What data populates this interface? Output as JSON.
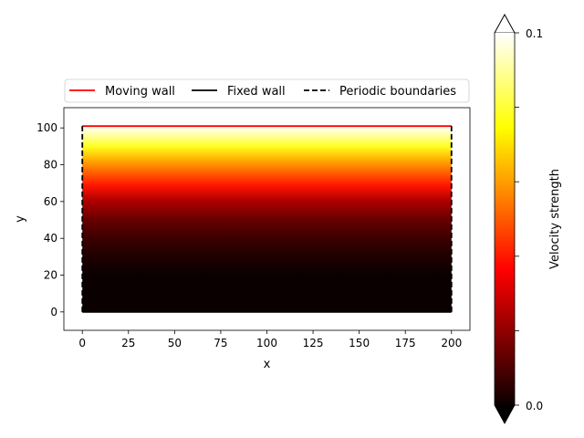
{
  "chart_data": {
    "type": "heatmap",
    "title": "",
    "xlabel": "x",
    "ylabel": "y",
    "xlim": [
      -10,
      210
    ],
    "ylim": [
      -10,
      111
    ],
    "x_ticks": [
      0,
      25,
      50,
      75,
      100,
      125,
      150,
      175,
      200
    ],
    "y_ticks": [
      0,
      20,
      40,
      60,
      80,
      100
    ],
    "field": {
      "x_range": [
        0,
        200
      ],
      "y_range": [
        0,
        101
      ],
      "description_profile_y": [
        0,
        10,
        20,
        30,
        40,
        50,
        60,
        70,
        80,
        90,
        100,
        101
      ],
      "description_profile_velocity": [
        0.0,
        0.0,
        0.001,
        0.003,
        0.008,
        0.015,
        0.025,
        0.038,
        0.055,
        0.075,
        0.098,
        0.1
      ]
    },
    "lines": [
      {
        "name": "Moving wall",
        "color": "#ff0000",
        "style": "solid",
        "x": [
          0,
          200
        ],
        "y": [
          101,
          101
        ]
      },
      {
        "name": "Fixed wall",
        "color": "#000000",
        "style": "solid",
        "x": [
          0,
          200
        ],
        "y": [
          0,
          0
        ]
      },
      {
        "name": "Periodic boundaries",
        "color": "#000000",
        "style": "dashed",
        "x": [
          0,
          0
        ],
        "y": [
          0,
          101
        ]
      },
      {
        "name": "Periodic boundaries",
        "color": "#000000",
        "style": "dashed",
        "x": [
          200,
          200
        ],
        "y": [
          0,
          101
        ]
      }
    ],
    "legend": {
      "placement": "top",
      "entries": [
        {
          "label": "Moving wall",
          "color": "#ff0000",
          "style": "solid"
        },
        {
          "label": "Fixed wall",
          "color": "#000000",
          "style": "solid"
        },
        {
          "label": "Periodic boundaries",
          "color": "#000000",
          "style": "dashed"
        }
      ]
    },
    "colorbar": {
      "label": "Velocity strength",
      "min": 0.0,
      "max": 0.1,
      "tick_labels": [
        "0.0",
        "0.1"
      ],
      "extend": "both",
      "colormap": "hot"
    }
  }
}
